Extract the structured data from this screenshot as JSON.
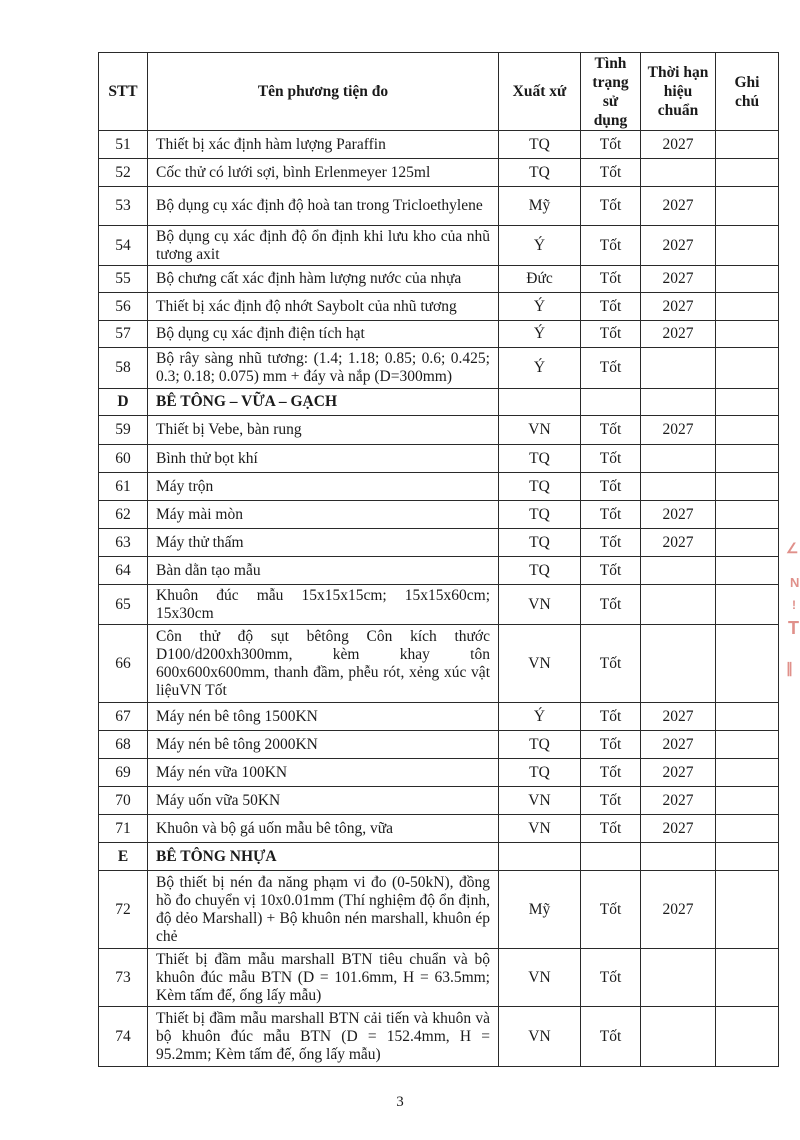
{
  "headers": {
    "stt": "STT",
    "name": "Tên phương tiện đo",
    "origin": "Xuất xứ",
    "status": "Tình trạng sử dụng",
    "calibration": "Thời hạn hiệu chuẩn",
    "note": "Ghi chú"
  },
  "rows": [
    {
      "stt": "51",
      "name": "Thiết bị xác định hàm lượng Paraffin",
      "origin": "TQ",
      "status": "Tốt",
      "calibration": "2027",
      "note": ""
    },
    {
      "stt": "52",
      "name": "Cốc thử có lưới sợi, bình Erlenmeyer 125ml",
      "origin": "TQ",
      "status": "Tốt",
      "calibration": "",
      "note": ""
    },
    {
      "stt": "53",
      "name": "Bộ dụng cụ xác định độ hoà tan trong Tricloethylene",
      "origin": "Mỹ",
      "status": "Tốt",
      "calibration": "2027",
      "note": ""
    },
    {
      "stt": "54",
      "name": "Bộ dụng cụ xác định độ ổn định khi lưu kho của nhũ tương axit",
      "origin": "Ý",
      "status": "Tốt",
      "calibration": "2027",
      "note": ""
    },
    {
      "stt": "55",
      "name": "Bộ chưng cất xác định hàm lượng nước của nhựa",
      "origin": "Đức",
      "status": "Tốt",
      "calibration": "2027",
      "note": ""
    },
    {
      "stt": "56",
      "name": "Thiết bị xác định độ nhớt Saybolt của nhũ tương",
      "origin": "Ý",
      "status": "Tốt",
      "calibration": "2027",
      "note": ""
    },
    {
      "stt": "57",
      "name": "Bộ dụng cụ xác định điện tích hạt",
      "origin": "Ý",
      "status": "Tốt",
      "calibration": "2027",
      "note": ""
    },
    {
      "stt": "58",
      "name": "Bộ rây sàng nhũ tương: (1.4; 1.18; 0.85; 0.6; 0.425; 0.3; 0.18; 0.075) mm + đáy và nắp (D=300mm)",
      "origin": "Ý",
      "status": "Tốt",
      "calibration": "",
      "note": ""
    },
    {
      "section": true,
      "stt": "D",
      "name": "BÊ TÔNG – VỮA – GẠCH"
    },
    {
      "stt": "59",
      "name": "Thiết bị Vebe, bàn rung",
      "origin": "VN",
      "status": "Tốt",
      "calibration": "2027",
      "note": ""
    },
    {
      "stt": "60",
      "name": "Bình thử bọt khí",
      "origin": "TQ",
      "status": "Tốt",
      "calibration": "",
      "note": ""
    },
    {
      "stt": "61",
      "name": "Máy trộn",
      "origin": "TQ",
      "status": "Tốt",
      "calibration": "",
      "note": ""
    },
    {
      "stt": "62",
      "name": "Máy mài mòn",
      "origin": "TQ",
      "status": "Tốt",
      "calibration": "2027",
      "note": ""
    },
    {
      "stt": "63",
      "name": "Máy thử thấm",
      "origin": "TQ",
      "status": "Tốt",
      "calibration": "2027",
      "note": ""
    },
    {
      "stt": "64",
      "name": "Bàn dằn tạo mẫu",
      "origin": "TQ",
      "status": "Tốt",
      "calibration": "",
      "note": ""
    },
    {
      "stt": "65",
      "name": "Khuôn đúc mẫu 15x15x15cm; 15x15x60cm; 15x30cm",
      "origin": "VN",
      "status": "Tốt",
      "calibration": "",
      "note": ""
    },
    {
      "stt": "66",
      "name": "Côn thử độ sụt bêtông Côn kích thước D100/d200xh300mm, kèm khay tôn 600x600x600mm, thanh đầm, phễu rót, xẻng xúc vật liệuVN     Tốt",
      "origin": "VN",
      "status": "Tốt",
      "calibration": "",
      "note": ""
    },
    {
      "stt": "67",
      "name": "Máy nén bê tông 1500KN",
      "origin": "Ý",
      "status": "Tốt",
      "calibration": "2027",
      "note": ""
    },
    {
      "stt": "68",
      "name": "Máy nén bê tông 2000KN",
      "origin": "TQ",
      "status": "Tốt",
      "calibration": "2027",
      "note": ""
    },
    {
      "stt": "69",
      "name": "Máy nén vữa 100KN",
      "origin": "TQ",
      "status": "Tốt",
      "calibration": "2027",
      "note": ""
    },
    {
      "stt": "70",
      "name": "Máy uốn vữa 50KN",
      "origin": "VN",
      "status": "Tốt",
      "calibration": "2027",
      "note": ""
    },
    {
      "stt": "71",
      "name": "Khuôn và bộ gá uốn mẫu bê tông, vữa",
      "origin": "VN",
      "status": "Tốt",
      "calibration": "2027",
      "note": ""
    },
    {
      "section": true,
      "stt": "E",
      "name": "BÊ TÔNG NHỰA"
    },
    {
      "stt": "72",
      "name": "Bộ thiết bị nén đa năng phạm vi đo (0-50kN), đồng hồ đo chuyển vị 10x0.01mm (Thí nghiệm độ ổn định, độ dẻo Marshall) + Bộ khuôn nén marshall, khuôn ép chẻ",
      "origin": "Mỹ",
      "status": "Tốt",
      "calibration": "2027",
      "note": ""
    },
    {
      "stt": "73",
      "name": "Thiết bị đầm mẫu marshall BTN tiêu chuẩn và bộ khuôn đúc mẫu BTN (D = 101.6mm, H = 63.5mm; Kèm tấm đế, ống lấy mẫu)",
      "origin": "VN",
      "status": "Tốt",
      "calibration": "",
      "note": ""
    },
    {
      "stt": "74",
      "name": "Thiết bị đầm mẫu marshall BTN cải tiến và khuôn và bộ khuôn đúc mẫu BTN (D = 152.4mm, H = 95.2mm; Kèm tấm đế, ống lấy mẫu)",
      "origin": "VN",
      "status": "Tốt",
      "calibration": "",
      "note": ""
    }
  ],
  "page_number": "3",
  "colors": {
    "stamp": "#d9756e"
  }
}
